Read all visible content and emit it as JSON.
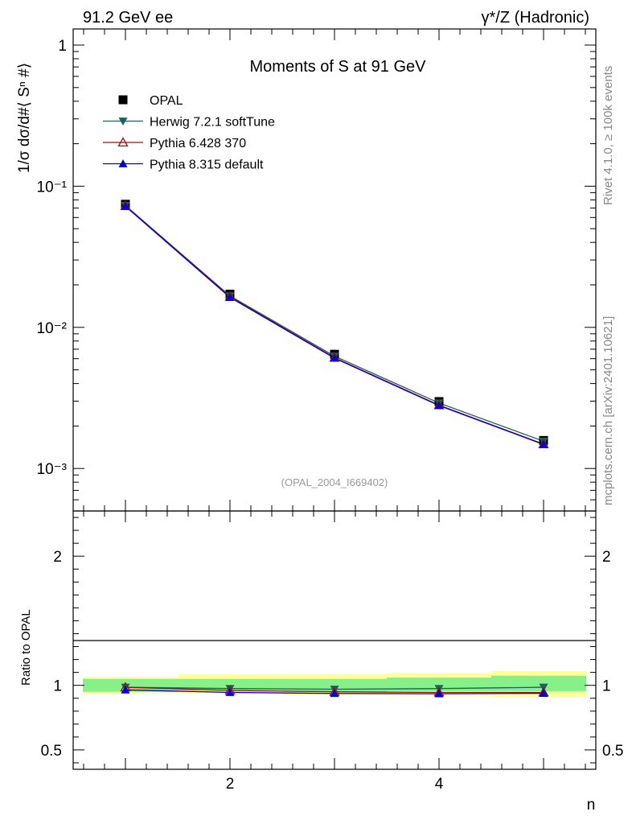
{
  "header": {
    "left": "91.2 GeV ee",
    "right": "γ*/Z (Hadronic)"
  },
  "side_text": {
    "rivet": "Rivet 4.1.0, ≥ 100k events",
    "mcplots": "mcplots.cern.ch [arXiv:2401.10621]"
  },
  "chart_data": [
    {
      "type": "line",
      "title": "Moments of S at 91 GeV",
      "ylabel": "1/σ  dσ/d#⟨ Sⁿ #⟩",
      "xlabel": "n",
      "yscale": "log",
      "xlim": [
        0.5,
        5.5
      ],
      "ylim": [
        0.0005,
        1.3
      ],
      "y_ticks": [
        {
          "value": 1,
          "label": "1"
        },
        {
          "value": 0.1,
          "label": "10⁻¹"
        },
        {
          "value": 0.01,
          "label": "10⁻²"
        },
        {
          "value": 0.001,
          "label": "10⁻³"
        }
      ],
      "annotation": "(OPAL_2004_I669402)",
      "x": [
        1,
        2,
        3,
        4,
        5
      ],
      "series": [
        {
          "name": "OPAL",
          "marker": "square",
          "color": "#000000",
          "values": [
            0.0745,
            0.0172,
            0.00645,
            0.00298,
            0.00158
          ]
        },
        {
          "name": "Herwig 7.2.1 softTune",
          "marker": "triangle-down",
          "color": "#1f5f5f",
          "values": [
            0.073,
            0.0167,
            0.00625,
            0.00291,
            0.00156
          ]
        },
        {
          "name": "Pythia 6.428 370",
          "marker": "triangle-open",
          "color": "#a01010",
          "values": [
            0.0725,
            0.0165,
            0.0061,
            0.00281,
            0.00149
          ]
        },
        {
          "name": "Pythia 8.315 default",
          "marker": "triangle-up",
          "color": "#0000dd",
          "values": [
            0.072,
            0.0163,
            0.00605,
            0.00279,
            0.00148
          ]
        }
      ]
    },
    {
      "type": "line",
      "ylabel": "Ratio to OPAL",
      "xlabel": "n",
      "xlim": [
        0.5,
        5.5
      ],
      "ylim": [
        0.35,
        2.35
      ],
      "x_ticks": [
        {
          "value": 2,
          "label": "2"
        },
        {
          "value": 4,
          "label": "4"
        }
      ],
      "y_ticks": [
        {
          "value": 0.5,
          "label": "0.5"
        },
        {
          "value": 1,
          "label": "1"
        },
        {
          "value": 2,
          "label": "2"
        }
      ],
      "x": [
        1,
        2,
        3,
        4,
        5
      ],
      "bands": {
        "stat_color": "#88f088",
        "total_color": "#ffff99",
        "stat": [
          [
            0.95,
            1.05
          ],
          [
            0.96,
            1.05
          ],
          [
            0.95,
            1.05
          ],
          [
            0.955,
            1.06
          ],
          [
            0.955,
            1.075
          ]
        ],
        "total": [
          [
            0.935,
            1.065
          ],
          [
            0.94,
            1.085
          ],
          [
            0.925,
            1.09
          ],
          [
            0.92,
            1.095
          ],
          [
            0.91,
            1.11
          ]
        ]
      },
      "series": [
        {
          "name": "Herwig 7.2.1 softTune",
          "marker": "triangle-down",
          "color": "#1f5f5f",
          "values": [
            0.985,
            0.975,
            0.97,
            0.975,
            0.985
          ]
        },
        {
          "name": "Pythia 6.428 370",
          "marker": "triangle-open",
          "color": "#a01010",
          "values": [
            0.985,
            0.96,
            0.95,
            0.945,
            0.945
          ]
        },
        {
          "name": "Pythia 8.315 default",
          "marker": "triangle-up",
          "color": "#0000dd",
          "values": [
            0.965,
            0.945,
            0.937,
            0.935,
            0.938
          ]
        }
      ]
    }
  ]
}
